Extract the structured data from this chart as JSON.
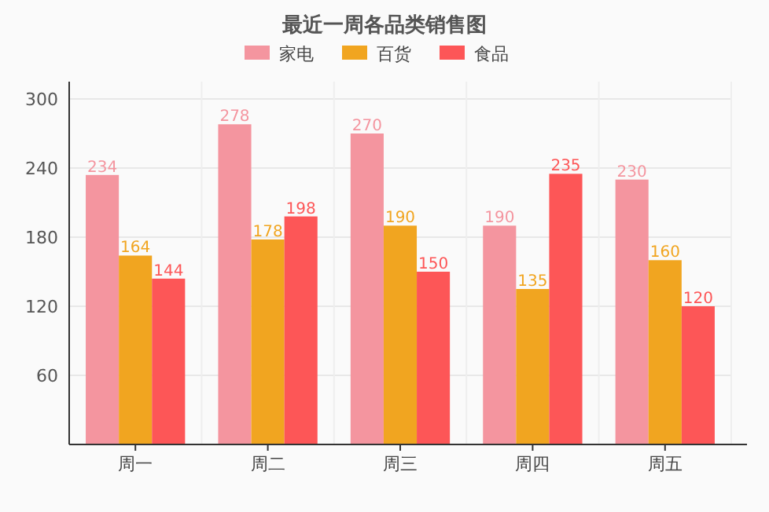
{
  "chart_data": {
    "type": "bar",
    "title": "最近一周各品类销售图",
    "categories": [
      "周一",
      "周二",
      "周三",
      "周四",
      "周五"
    ],
    "series": [
      {
        "name": "家电",
        "color": "#f4959f",
        "values": [
          234,
          278,
          270,
          190,
          230
        ]
      },
      {
        "name": "百货",
        "color": "#f1a520",
        "values": [
          164,
          178,
          190,
          135,
          160
        ]
      },
      {
        "name": "食品",
        "color": "#fd5657",
        "values": [
          144,
          198,
          150,
          235,
          120
        ]
      }
    ],
    "ylim": [
      0,
      315
    ],
    "yticks": [
      {
        "value": 0,
        "label": null
      },
      60,
      120,
      180,
      240,
      300
    ],
    "grid": true,
    "legend": "top",
    "data_labels": true
  }
}
